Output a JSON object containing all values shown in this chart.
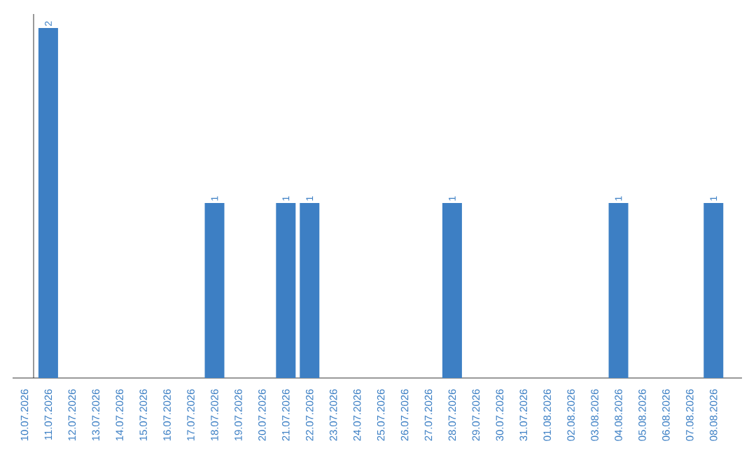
{
  "chart_data": {
    "type": "bar",
    "categories": [
      "10.07.2026",
      "11.07.2026",
      "12.07.2026",
      "13.07.2026",
      "14.07.2026",
      "15.07.2026",
      "16.07.2026",
      "17.07.2026",
      "18.07.2026",
      "19.07.2026",
      "20.07.2026",
      "21.07.2026",
      "22.07.2026",
      "23.07.2026",
      "24.07.2026",
      "25.07.2026",
      "26.07.2026",
      "27.07.2026",
      "28.07.2026",
      "29.07.2026",
      "30.07.2026",
      "31.07.2026",
      "01.08.2026",
      "02.08.2026",
      "03.08.2026",
      "04.08.2026",
      "05.08.2026",
      "06.08.2026",
      "07.08.2026",
      "08.08.2026"
    ],
    "values": [
      0,
      2,
      0,
      0,
      0,
      0,
      0,
      0,
      1,
      0,
      0,
      1,
      1,
      0,
      0,
      0,
      0,
      0,
      1,
      0,
      0,
      0,
      0,
      0,
      0,
      1,
      0,
      0,
      0,
      1
    ],
    "value_labels": [
      null,
      "2",
      null,
      null,
      null,
      null,
      null,
      null,
      "1",
      null,
      null,
      "1",
      "1",
      null,
      null,
      null,
      null,
      null,
      "1",
      null,
      null,
      null,
      null,
      null,
      null,
      "1",
      null,
      null,
      null,
      "1"
    ],
    "color": "#3d7fc4"
  }
}
